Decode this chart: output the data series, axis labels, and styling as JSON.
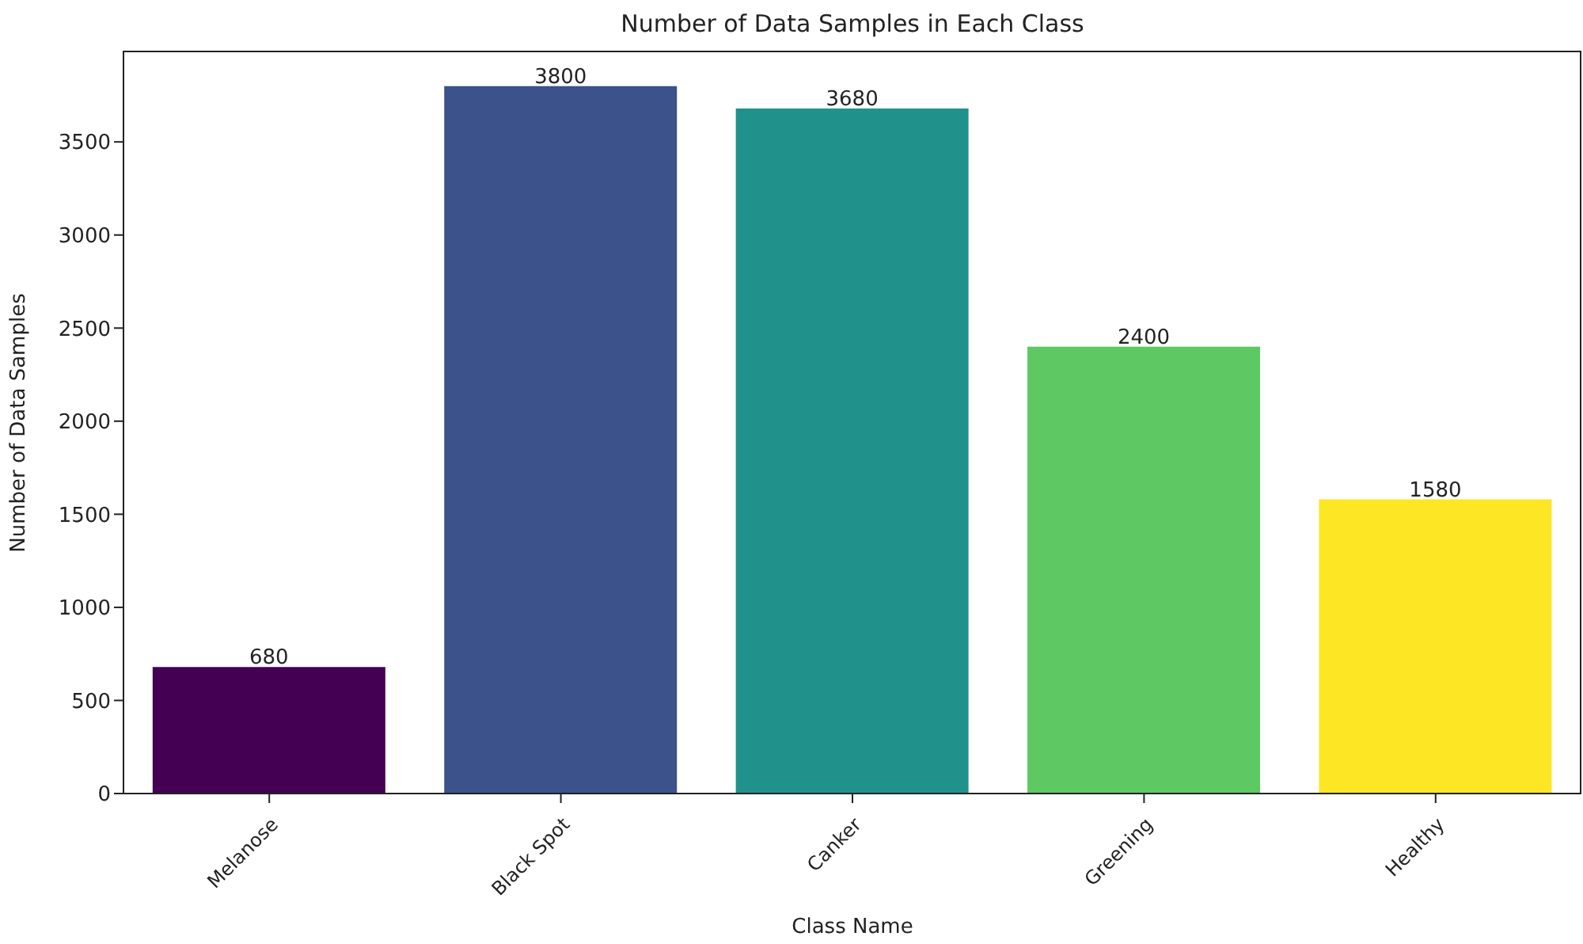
{
  "chart_data": {
    "type": "bar",
    "title": "Number of Data Samples in Each Class",
    "xlabel": "Class Name",
    "ylabel": "Number of Data Samples",
    "categories": [
      "Melanose",
      "Black Spot",
      "Canker",
      "Greening",
      "Healthy"
    ],
    "values": [
      680,
      3800,
      3680,
      2400,
      1580
    ],
    "colors": [
      "#440154",
      "#3b528b",
      "#21918c",
      "#5ec962",
      "#fde725"
    ],
    "ylim": [
      0,
      3990
    ],
    "yticks": [
      0,
      500,
      1000,
      1500,
      2000,
      2500,
      3000,
      3500
    ],
    "data_labels": true
  }
}
